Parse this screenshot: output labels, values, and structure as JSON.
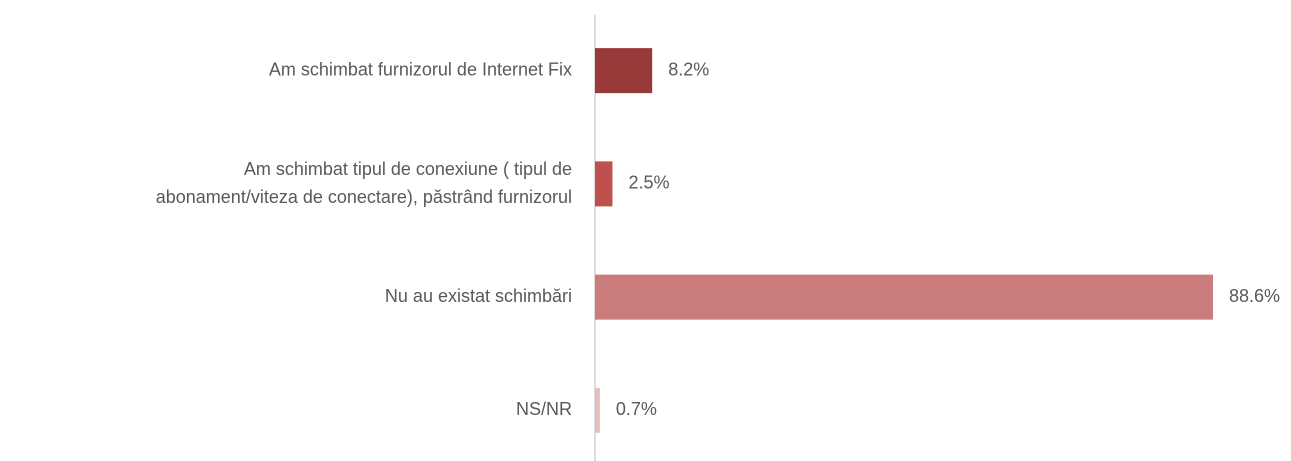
{
  "chart_data": {
    "type": "hbar",
    "categories": [
      "Am schimbat furnizorul de Internet Fix",
      [
        "Am schimbat tipul de conexiune ( tipul de",
        "abonament/viteza de conectare), păstrând furnizorul"
      ],
      "Nu au existat schimbări",
      "NS/NR"
    ],
    "values": [
      8.2,
      2.5,
      88.6,
      0.7
    ],
    "value_labels": [
      "8.2%",
      "2.5%",
      "88.6%",
      "0.7%"
    ],
    "colors": [
      "#983a3a",
      "#c0504d",
      "#ca7b7b",
      "#e6bcbc"
    ]
  }
}
